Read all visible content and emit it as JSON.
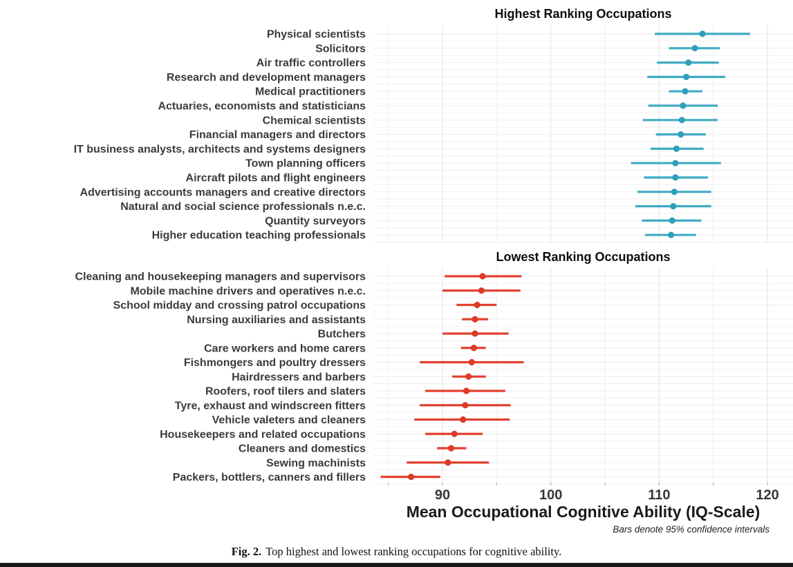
{
  "figure": {
    "caption_label": "Fig. 2.",
    "caption_text": "Top highest and lowest ranking occupations for cognitive ability."
  },
  "colors": {
    "highest_line": "#3fabc4",
    "highest_dot": "#2f9fba",
    "lowest_line": "#e2402f",
    "lowest_dot": "#dd3a28",
    "grid_major": "#e3e3e3",
    "grid_minor": "#f0f0f0",
    "grid_horizontal": "#ededed",
    "tick_mark": "#c8c8c8",
    "label_text": "#3b3b3b",
    "tick_text": "#383838",
    "title_text": "#0d0d0d"
  },
  "chart_data": {
    "type": "scatter",
    "subtype": "horizontal dot plot with 95% CI error bars, two panels",
    "xlabel": "Mean Occupational Cognitive Ability (IQ-Scale)",
    "note": "Bars denote 95% confidence intervals",
    "xlim": [
      83,
      122.4
    ],
    "xticks": [
      90,
      100,
      110,
      120
    ],
    "gridlines_every": 5,
    "grid": true,
    "legend": false,
    "panels": [
      {
        "title": "Highest Ranking Occupations",
        "series": [
          {
            "label": "Physical scientists",
            "mean": 114.0,
            "ci": [
              109.6,
              118.4
            ]
          },
          {
            "label": "Solicitors",
            "mean": 113.3,
            "ci": [
              110.9,
              115.6
            ]
          },
          {
            "label": "Air traffic controllers",
            "mean": 112.7,
            "ci": [
              109.8,
              115.5
            ]
          },
          {
            "label": "Research and development managers",
            "mean": 112.5,
            "ci": [
              108.9,
              116.1
            ]
          },
          {
            "label": "Medical practitioners",
            "mean": 112.4,
            "ci": [
              110.9,
              114.0
            ]
          },
          {
            "label": "Actuaries, economists and statisticians",
            "mean": 112.2,
            "ci": [
              109.0,
              115.4
            ]
          },
          {
            "label": "Chemical scientists",
            "mean": 112.1,
            "ci": [
              108.5,
              115.4
            ]
          },
          {
            "label": "Financial managers and directors",
            "mean": 112.0,
            "ci": [
              109.7,
              114.3
            ]
          },
          {
            "label": "IT business analysts, architects and systems designers",
            "mean": 111.6,
            "ci": [
              109.2,
              114.1
            ]
          },
          {
            "label": "Town planning officers",
            "mean": 111.5,
            "ci": [
              107.4,
              115.7
            ]
          },
          {
            "label": "Aircraft pilots and flight engineers",
            "mean": 111.5,
            "ci": [
              108.6,
              114.5
            ]
          },
          {
            "label": "Advertising accounts managers and creative directors",
            "mean": 111.4,
            "ci": [
              108.0,
              114.8
            ]
          },
          {
            "label": "Natural and social science professionals n.e.c.",
            "mean": 111.3,
            "ci": [
              107.8,
              114.8
            ]
          },
          {
            "label": "Quantity surveyors",
            "mean": 111.2,
            "ci": [
              108.4,
              113.9
            ]
          },
          {
            "label": "Higher education teaching professionals",
            "mean": 111.1,
            "ci": [
              108.7,
              113.4
            ]
          }
        ]
      },
      {
        "title": "Lowest Ranking Occupations",
        "series": [
          {
            "label": "Cleaning and housekeeping managers and supervisors",
            "mean": 93.7,
            "ci": [
              90.2,
              97.3
            ]
          },
          {
            "label": "Mobile machine drivers and operatives n.e.c.",
            "mean": 93.6,
            "ci": [
              90.0,
              97.2
            ]
          },
          {
            "label": "School midday and crossing patrol occupations",
            "mean": 93.2,
            "ci": [
              91.3,
              95.0
            ]
          },
          {
            "label": "Nursing auxiliaries and assistants",
            "mean": 93.0,
            "ci": [
              91.8,
              94.2
            ]
          },
          {
            "label": "Butchers",
            "mean": 93.0,
            "ci": [
              90.0,
              96.1
            ]
          },
          {
            "label": "Care workers and home carers",
            "mean": 92.9,
            "ci": [
              91.7,
              94.0
            ]
          },
          {
            "label": "Fishmongers and poultry dressers",
            "mean": 92.7,
            "ci": [
              87.9,
              97.5
            ]
          },
          {
            "label": "Hairdressers and barbers",
            "mean": 92.4,
            "ci": [
              90.9,
              94.0
            ]
          },
          {
            "label": "Roofers, roof tilers and slaters",
            "mean": 92.2,
            "ci": [
              88.4,
              95.8
            ]
          },
          {
            "label": "Tyre, exhaust and windscreen fitters",
            "mean": 92.1,
            "ci": [
              87.9,
              96.3
            ]
          },
          {
            "label": "Vehicle valeters and cleaners",
            "mean": 91.9,
            "ci": [
              87.4,
              96.2
            ]
          },
          {
            "label": "Housekeepers and related occupations",
            "mean": 91.1,
            "ci": [
              88.4,
              93.7
            ]
          },
          {
            "label": "Cleaners and domestics",
            "mean": 90.8,
            "ci": [
              89.5,
              92.2
            ]
          },
          {
            "label": "Sewing machinists",
            "mean": 90.5,
            "ci": [
              86.7,
              94.3
            ]
          },
          {
            "label": "Packers, bottlers, canners and fillers",
            "mean": 87.1,
            "ci": [
              84.3,
              89.8
            ]
          }
        ]
      }
    ]
  }
}
